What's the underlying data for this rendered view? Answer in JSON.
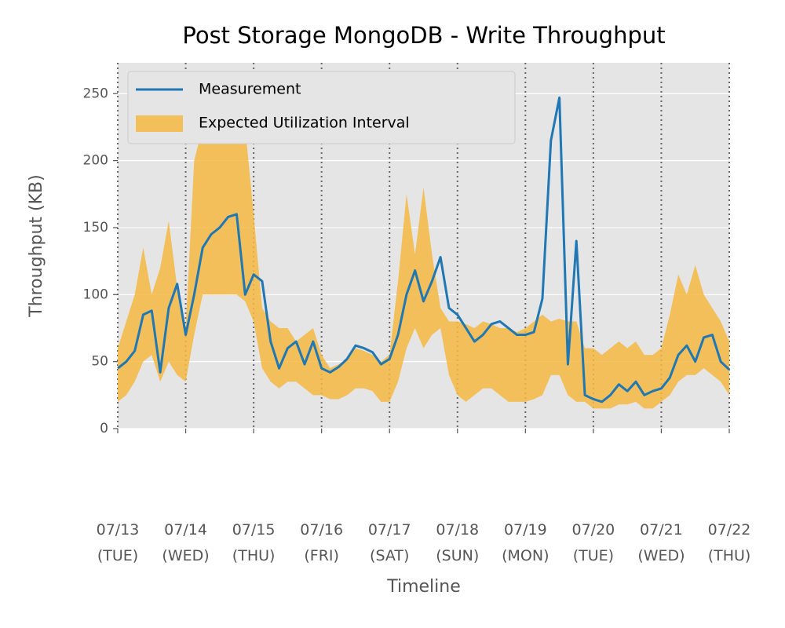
{
  "chart_data": {
    "type": "line",
    "title": "Post Storage MongoDB - Write Throughput",
    "x_label": "Timeline",
    "y_label": "Throughput (KB)",
    "xlim": [
      0,
      9
    ],
    "ylim": [
      0,
      273
    ],
    "yticks": [
      0,
      50,
      100,
      150,
      200,
      250
    ],
    "xticks": [
      {
        "value": 0,
        "label": "07/13\n(TUE)"
      },
      {
        "value": 1,
        "label": "07/14\n(WED)"
      },
      {
        "value": 2,
        "label": "07/15\n(THU)"
      },
      {
        "value": 3,
        "label": "07/16\n(FRI)"
      },
      {
        "value": 4,
        "label": "07/17\n(SAT)"
      },
      {
        "value": 5,
        "label": "07/18\n(SUN)"
      },
      {
        "value": 6,
        "label": "07/19\n(MON)"
      },
      {
        "value": 7,
        "label": "07/20\n(TUE)"
      },
      {
        "value": 8,
        "label": "07/21\n(WED)"
      },
      {
        "value": 9,
        "label": "07/22\n(THU)"
      }
    ],
    "grid": true,
    "legend_position": "upper left",
    "x": [
      0,
      0.125,
      0.25,
      0.375,
      0.5,
      0.625,
      0.75,
      0.875,
      1,
      1.125,
      1.25,
      1.375,
      1.5,
      1.625,
      1.75,
      1.875,
      2,
      2.125,
      2.25,
      2.375,
      2.5,
      2.625,
      2.75,
      2.875,
      3,
      3.125,
      3.25,
      3.375,
      3.5,
      3.625,
      3.75,
      3.875,
      4,
      4.125,
      4.25,
      4.375,
      4.5,
      4.625,
      4.75,
      4.875,
      5,
      5.125,
      5.25,
      5.375,
      5.5,
      5.625,
      5.75,
      5.875,
      6,
      6.125,
      6.25,
      6.375,
      6.5,
      6.625,
      6.75,
      6.875,
      7,
      7.125,
      7.25,
      7.375,
      7.5,
      7.625,
      7.75,
      7.875,
      8,
      8.125,
      8.25,
      8.375,
      8.5,
      8.625,
      8.75,
      8.875,
      9
    ],
    "series": [
      {
        "name": "Measurement",
        "color": "#1f77b4",
        "values": [
          45,
          50,
          58,
          85,
          88,
          42,
          90,
          108,
          70,
          100,
          135,
          145,
          150,
          158,
          160,
          100,
          115,
          110,
          65,
          45,
          60,
          65,
          48,
          65,
          45,
          42,
          46,
          52,
          62,
          60,
          57,
          48,
          52,
          70,
          100,
          118,
          95,
          110,
          128,
          90,
          85,
          75,
          65,
          70,
          78,
          80,
          75,
          70,
          70,
          72,
          97,
          215,
          247,
          48,
          140,
          25,
          22,
          20,
          25,
          33,
          28,
          35,
          25,
          28,
          30,
          38,
          55,
          62,
          50,
          68,
          70,
          50,
          44
        ]
      },
      {
        "name": "Expected Utilization Interval",
        "color": "#f5b942",
        "upper": [
          60,
          80,
          100,
          135,
          100,
          120,
          155,
          105,
          75,
          200,
          225,
          230,
          230,
          230,
          230,
          225,
          160,
          90,
          80,
          75,
          75,
          65,
          70,
          75,
          55,
          45,
          48,
          52,
          60,
          58,
          55,
          50,
          55,
          110,
          175,
          130,
          180,
          130,
          90,
          80,
          80,
          78,
          75,
          80,
          78,
          75,
          75,
          72,
          75,
          80,
          85,
          80,
          82,
          80,
          80,
          60,
          60,
          55,
          60,
          65,
          60,
          65,
          55,
          55,
          60,
          85,
          115,
          100,
          122,
          100,
          90,
          80,
          65
        ],
        "lower": [
          20,
          25,
          35,
          50,
          55,
          35,
          50,
          40,
          35,
          70,
          100,
          100,
          100,
          100,
          100,
          95,
          80,
          45,
          35,
          30,
          35,
          35,
          30,
          25,
          25,
          22,
          22,
          25,
          30,
          30,
          28,
          20,
          20,
          35,
          60,
          75,
          60,
          70,
          75,
          40,
          25,
          20,
          25,
          30,
          30,
          25,
          20,
          20,
          20,
          22,
          25,
          40,
          40,
          25,
          20,
          20,
          15,
          15,
          15,
          18,
          18,
          20,
          15,
          15,
          20,
          25,
          35,
          40,
          40,
          45,
          40,
          35,
          25
        ]
      }
    ]
  }
}
